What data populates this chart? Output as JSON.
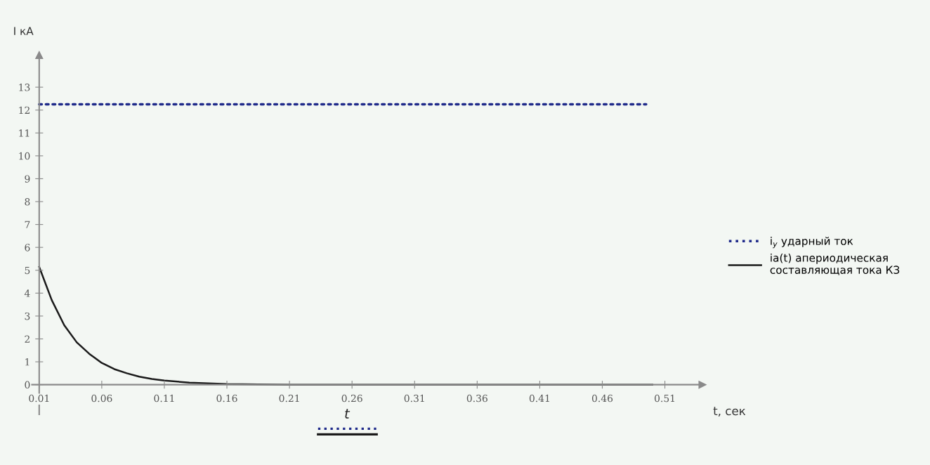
{
  "chart_data": {
    "type": "line",
    "xlabel": "t, сек",
    "ylabel": "I кА",
    "xlim": [
      0,
      0.54
    ],
    "ylim": [
      -1.3,
      14.4
    ],
    "xticks": [
      0.01,
      0.06,
      0.11,
      0.16,
      0.21,
      0.26,
      0.31,
      0.36,
      0.41,
      0.46,
      0.51
    ],
    "yticks": [
      0,
      1,
      2,
      3,
      4,
      5,
      6,
      7,
      8,
      9,
      10,
      11,
      12,
      13
    ],
    "grid": false,
    "legend": "right",
    "marker": "none",
    "series": [
      {
        "name": "i$_{y}$ ударный ток",
        "color": "#1f2a8a",
        "line_style": "dotted",
        "x": [
          0.01,
          0.495
        ],
        "values": [
          12.25,
          12.25
        ]
      },
      {
        "name": "ia(t) апериодическая составляющая тока КЗ",
        "color": "#1a1a1a",
        "line_style": "solid",
        "x": [
          0.01,
          0.02,
          0.03,
          0.04,
          0.05,
          0.06,
          0.07,
          0.08,
          0.09,
          0.1,
          0.11,
          0.13,
          0.16,
          0.21,
          0.3,
          0.4,
          0.5
        ],
        "values": [
          5.15,
          3.7,
          2.6,
          1.85,
          1.35,
          0.95,
          0.68,
          0.5,
          0.35,
          0.25,
          0.18,
          0.09,
          0.03,
          0,
          0,
          0,
          0
        ]
      }
    ],
    "annotations": [
      "t"
    ]
  }
}
